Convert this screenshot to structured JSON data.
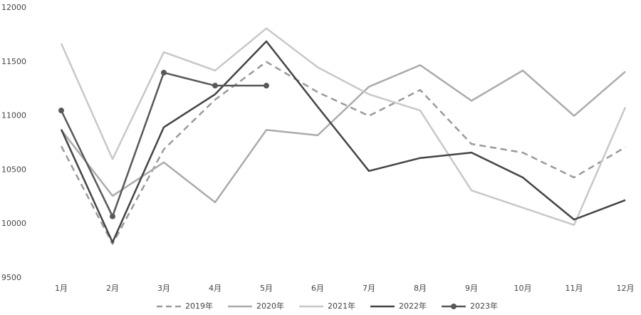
{
  "chart_data": {
    "type": "line",
    "categories": [
      "1月",
      "2月",
      "3月",
      "4月",
      "5月",
      "6月",
      "7月",
      "8月",
      "9月",
      "10月",
      "11月",
      "12月"
    ],
    "ylim": [
      9500,
      12000
    ],
    "yticks": [
      9500,
      10000,
      10500,
      11000,
      11500,
      12000
    ],
    "grid": false,
    "legend": "bottom",
    "series": [
      {
        "name": "2019年",
        "color": "#9a9a9a",
        "dashed": true,
        "markers": false,
        "values": [
          10720,
          9815,
          10690,
          11150,
          11500,
          11220,
          11000,
          11240,
          10740,
          10660,
          10430,
          10710
        ]
      },
      {
        "name": "2020年",
        "color": "#ababab",
        "dashed": false,
        "markers": false,
        "values": [
          10870,
          10260,
          10570,
          10200,
          10870,
          10820,
          11270,
          11470,
          11140,
          11420,
          11000,
          11410
        ]
      },
      {
        "name": "2021年",
        "color": "#c8c8c8",
        "dashed": false,
        "markers": false,
        "values": [
          11670,
          10600,
          11590,
          11420,
          11810,
          11450,
          11200,
          11050,
          10310,
          10150,
          9990,
          11080
        ]
      },
      {
        "name": "2022年",
        "color": "#444444",
        "dashed": false,
        "markers": false,
        "values": [
          10875,
          9830,
          10895,
          11200,
          11690,
          11085,
          10490,
          10610,
          10660,
          10430,
          10040,
          10220
        ]
      },
      {
        "name": "2023年",
        "color": "#585858",
        "dashed": false,
        "markers": true,
        "values": [
          11050,
          10070,
          11400,
          11280,
          11280,
          null,
          null,
          null,
          null,
          null,
          null,
          null
        ]
      }
    ]
  }
}
